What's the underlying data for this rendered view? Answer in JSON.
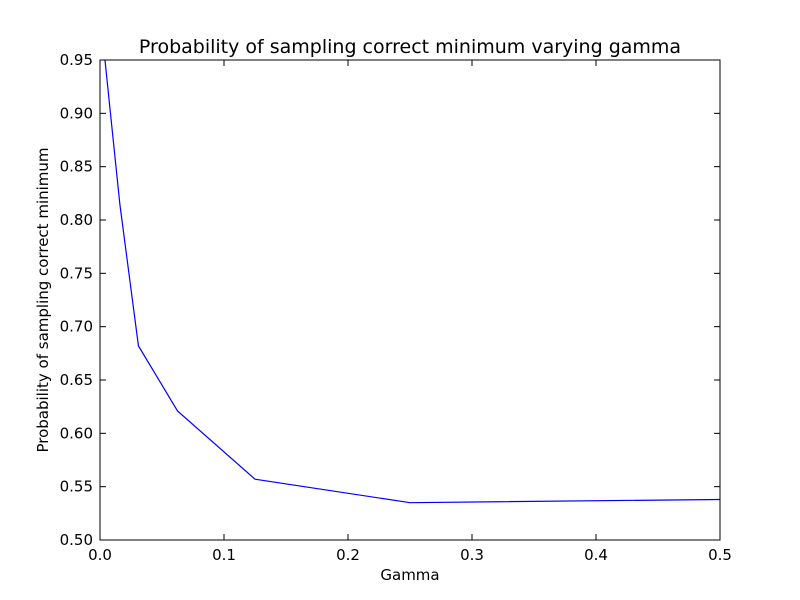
{
  "chart_data": {
    "type": "line",
    "title": "Probability of sampling correct minimum varying gamma",
    "xlabel": "Gamma",
    "ylabel": "Probability of sampling correct minimum",
    "xlim": [
      0.0,
      0.5
    ],
    "ylim": [
      0.5,
      0.95
    ],
    "x_ticks": [
      0.0,
      0.1,
      0.2,
      0.3,
      0.4,
      0.5
    ],
    "x_tick_labels": [
      "0.0",
      "0.1",
      "0.2",
      "0.3",
      "0.4",
      "0.5"
    ],
    "y_ticks": [
      0.5,
      0.55,
      0.6,
      0.65,
      0.7,
      0.75,
      0.8,
      0.85,
      0.9,
      0.95
    ],
    "y_tick_labels": [
      "0.50",
      "0.55",
      "0.60",
      "0.65",
      "0.70",
      "0.75",
      "0.80",
      "0.85",
      "0.90",
      "0.95"
    ],
    "grid": false,
    "series": [
      {
        "color": "#0000ff",
        "x": [
          0.004,
          0.016,
          0.031,
          0.0625,
          0.125,
          0.25,
          0.5
        ],
        "y": [
          0.95,
          0.815,
          0.682,
          0.621,
          0.557,
          0.535,
          0.538
        ]
      }
    ]
  }
}
